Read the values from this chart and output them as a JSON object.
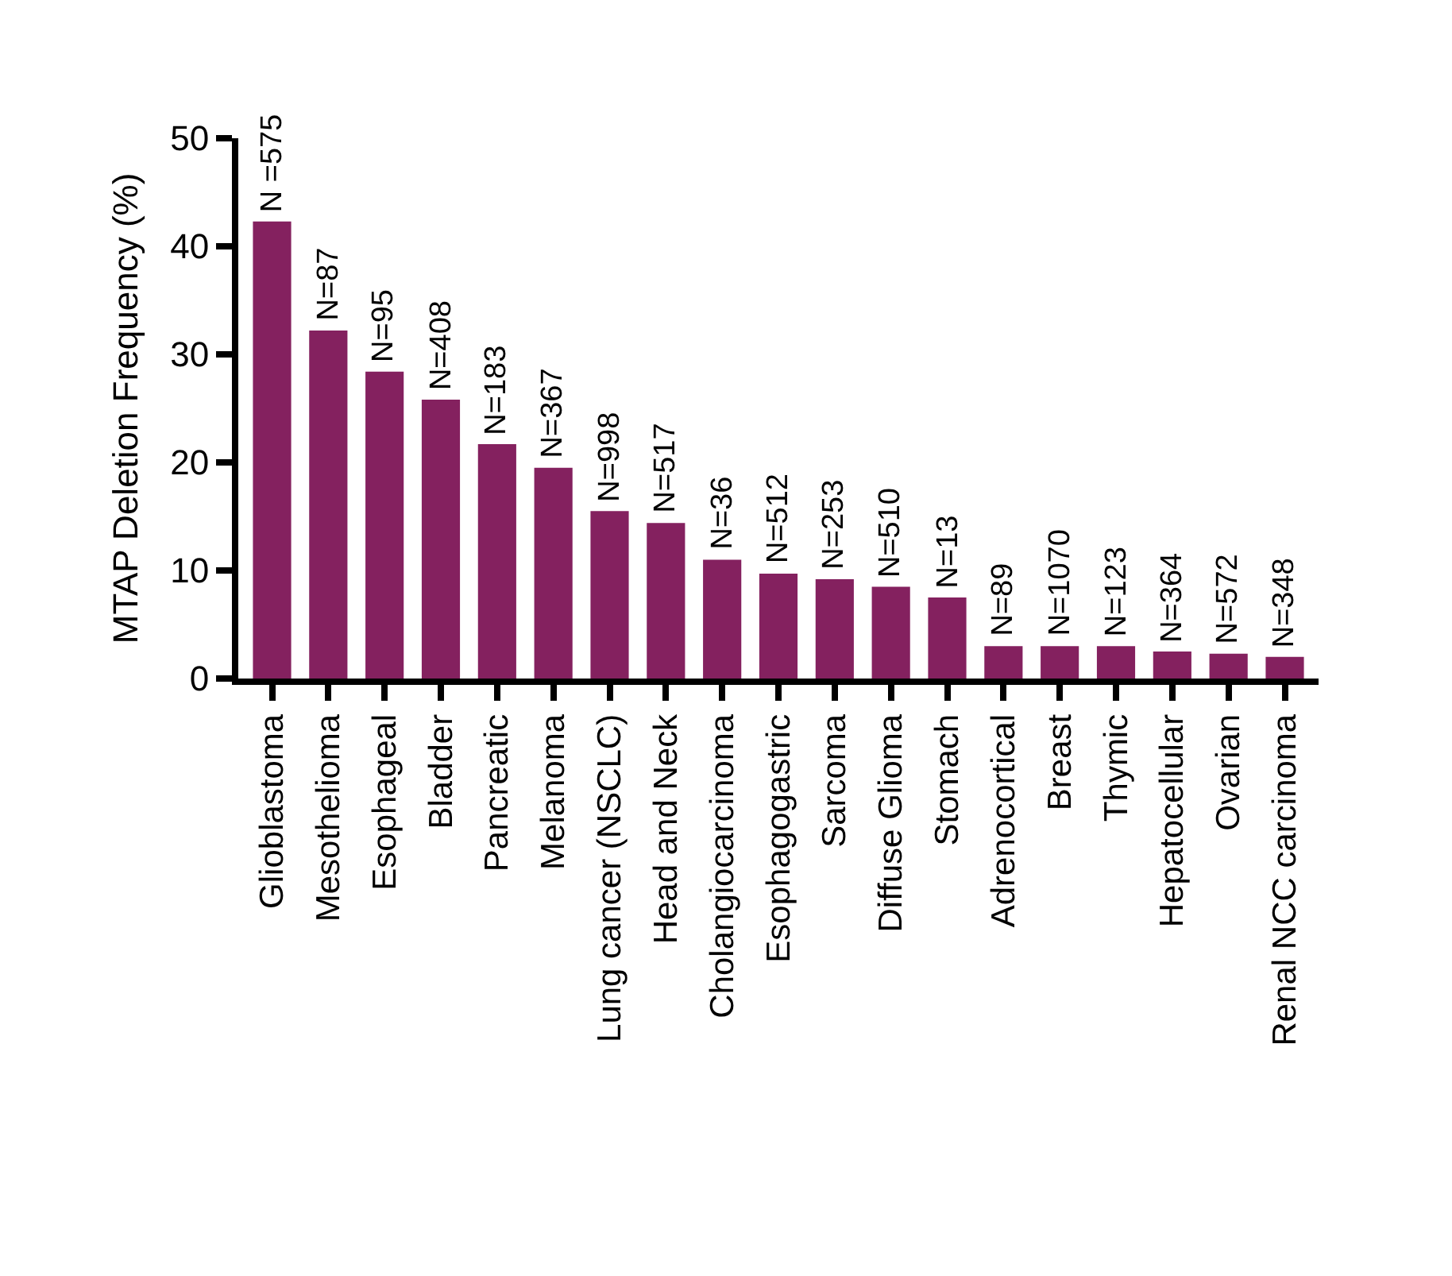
{
  "chart_data": {
    "type": "bar",
    "ylabel": "MTAP Deletion Frequency (%)",
    "categories": [
      "Glioblastoma",
      "Mesothelioma",
      "Esophageal",
      "Bladder",
      "Pancreatic",
      "Melanoma",
      "Lung cancer (NSCLC)",
      "Head and Neck",
      "Cholangiocarcinoma",
      "Esophagogastric",
      "Sarcoma",
      "Diffuse Glioma",
      "Stomach",
      "Adrenocortical",
      "Breast",
      "Thymic",
      "Hepatocellular",
      "Ovarian",
      "Renal NCC carcinoma"
    ],
    "values": [
      42.3,
      32.2,
      28.4,
      25.8,
      21.7,
      19.5,
      15.5,
      14.4,
      11.0,
      9.7,
      9.2,
      8.5,
      7.5,
      3.0,
      3.0,
      3.0,
      2.5,
      2.3,
      2.0
    ],
    "color": "#84215f",
    "ylim": [
      0,
      50
    ],
    "yticks": [
      0,
      10,
      20,
      30,
      40,
      50
    ],
    "legend": false,
    "annotations": [
      {
        "text": "N =575",
        "x": "Glioblastoma",
        "y": 42.3
      },
      {
        "text": "N=87",
        "x": "Mesothelioma",
        "y": 32.2
      },
      {
        "text": "N=95",
        "x": "Esophageal",
        "y": 28.4
      },
      {
        "text": "N=408",
        "x": "Bladder",
        "y": 25.8
      },
      {
        "text": "N=183",
        "x": "Pancreatic",
        "y": 21.7
      },
      {
        "text": "N=367",
        "x": "Melanoma",
        "y": 19.5
      },
      {
        "text": "N=998",
        "x": "Lung cancer (NSCLC)",
        "y": 15.5
      },
      {
        "text": "N=517",
        "x": "Head and Neck",
        "y": 14.4
      },
      {
        "text": "N=36",
        "x": "Cholangiocarcinoma",
        "y": 11.0
      },
      {
        "text": "N=512",
        "x": "Esophagogastric",
        "y": 9.7
      },
      {
        "text": "N=253",
        "x": "Sarcoma",
        "y": 9.2
      },
      {
        "text": "N=510",
        "x": "Diffuse Glioma",
        "y": 8.5
      },
      {
        "text": "N=13",
        "x": "Stomach",
        "y": 7.5
      },
      {
        "text": "N=89",
        "x": "Adrenocortical",
        "y": 3.0
      },
      {
        "text": "N=1070",
        "x": "Breast",
        "y": 3.0
      },
      {
        "text": "N=123",
        "x": "Thymic",
        "y": 3.0
      },
      {
        "text": "N=364",
        "x": "Hepatocellular",
        "y": 2.5
      },
      {
        "text": "N=572",
        "x": "Ovarian",
        "y": 2.3
      },
      {
        "text": "N=348",
        "x": "Renal NCC carcinoma",
        "y": 2.0
      }
    ]
  }
}
